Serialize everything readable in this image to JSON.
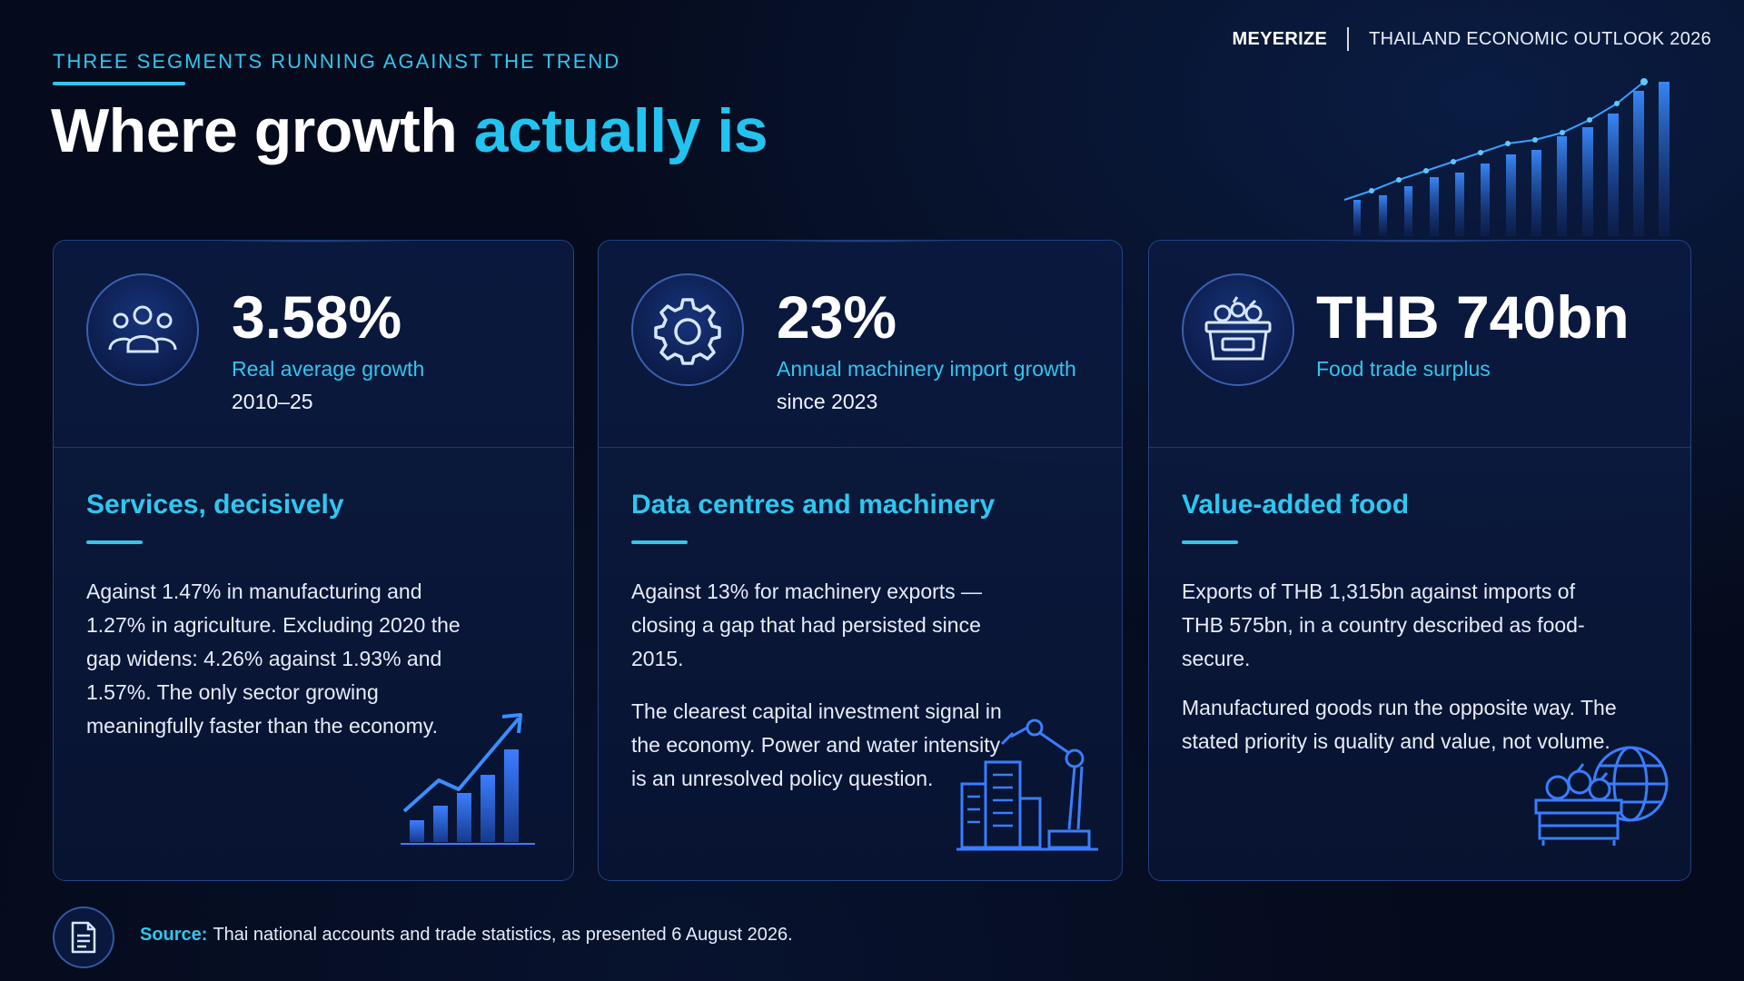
{
  "header": {
    "brand": "MEYERIZE",
    "report": "THAILAND ECONOMIC OUTLOOK 2026"
  },
  "eyebrow": "THREE SEGMENTS RUNNING AGAINST THE TREND",
  "title": {
    "plain": "Where growth ",
    "accent": "actually is"
  },
  "colors": {
    "background": "#050b1c",
    "accent": "#2ec7ee",
    "text": "#ffffff"
  },
  "cards": [
    {
      "icon": "people-icon",
      "stat_value": "3.58%",
      "stat_label": "Real average growth",
      "stat_sub": "2010–25",
      "heading": "Services, decisively",
      "body": [
        "Against 1.47% in manufacturing and 1.27% in agriculture. Excluding 2020 the gap widens: 4.26% against 1.93% and 1.57%. The only sector growing meaningfully faster than the economy."
      ],
      "illustration": "growth-bar-chart-icon"
    },
    {
      "icon": "gear-icon",
      "stat_value": "23%",
      "stat_label": "Annual machinery import growth",
      "stat_sub": "since 2023",
      "heading": "Data centres and machinery",
      "body": [
        "Against 13% for machinery exports — closing a gap that had persisted since 2015.",
        "The clearest capital investment signal in the economy. Power and water intensity is an unresolved policy question."
      ],
      "illustration": "building-robot-arm-icon"
    },
    {
      "icon": "food-basket-icon",
      "stat_value": "THB 740bn",
      "stat_label": "Food trade surplus",
      "stat_sub": "",
      "heading": "Value-added food",
      "body": [
        "Exports of THB 1,315bn against imports of THB 575bn, in a country described as food-secure.",
        "Manufactured goods run the opposite way. The stated priority is quality and value, not volume."
      ],
      "illustration": "food-crate-globe-icon"
    }
  ],
  "footer": {
    "source_label": "Source:",
    "source_text": "Thai national accounts and trade statistics, as presented 6 August 2026."
  }
}
